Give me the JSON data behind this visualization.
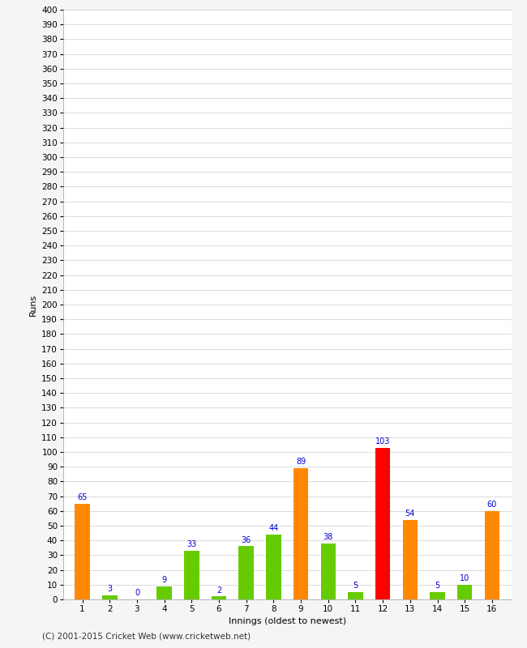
{
  "innings": [
    1,
    2,
    3,
    4,
    5,
    6,
    7,
    8,
    9,
    10,
    11,
    12,
    13,
    14,
    15,
    16
  ],
  "values": [
    65,
    3,
    0,
    9,
    33,
    2,
    36,
    44,
    89,
    38,
    5,
    103,
    54,
    5,
    10,
    60
  ],
  "colors": [
    "#ff8800",
    "#66cc00",
    "#66cc00",
    "#66cc00",
    "#66cc00",
    "#66cc00",
    "#66cc00",
    "#66cc00",
    "#ff8800",
    "#66cc00",
    "#66cc00",
    "#ff0000",
    "#ff8800",
    "#66cc00",
    "#66cc00",
    "#ff8800"
  ],
  "xlabel": "Innings (oldest to newest)",
  "ylabel": "Runs",
  "ylim": [
    0,
    400
  ],
  "ytick_step": 10,
  "label_color": "#0000cc",
  "label_fontsize": 7,
  "footer": "(C) 2001-2015 Cricket Web (www.cricketweb.net)",
  "bg_color": "#f5f5f5",
  "plot_bg_color": "#ffffff",
  "grid_color": "#cccccc",
  "axis_label_fontsize": 8,
  "tick_fontsize": 7.5,
  "footer_fontsize": 7.5
}
